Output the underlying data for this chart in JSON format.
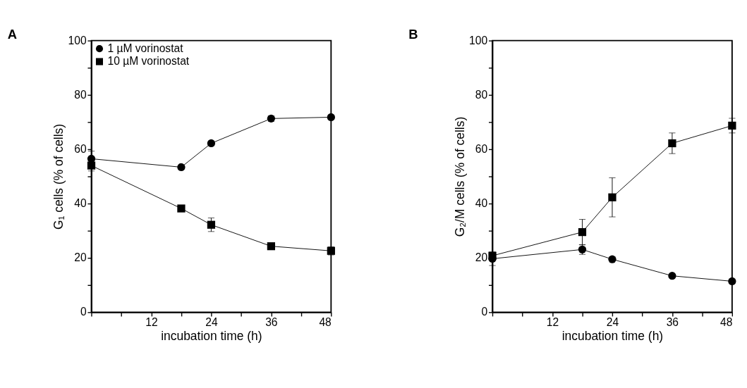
{
  "chart_data": [
    {
      "type": "line",
      "title": "A",
      "xlabel": "incubation time (h)",
      "ylabel": "G₁ cells (% of cells)",
      "xlim": [
        0,
        48
      ],
      "ylim": [
        0,
        100
      ],
      "xticks": [
        {
          "value": 0,
          "label": null
        },
        {
          "value": 6,
          "label": null
        },
        12,
        {
          "value": 18,
          "label": null
        },
        24,
        {
          "value": 30,
          "label": null
        },
        36,
        {
          "value": 42,
          "label": null
        },
        48
      ],
      "yticks": [
        0,
        {
          "value": 10,
          "label": null
        },
        20,
        {
          "value": 30,
          "label": null
        },
        40,
        {
          "value": 50,
          "label": null
        },
        60,
        {
          "value": 70,
          "label": null
        },
        80,
        {
          "value": 90,
          "label": null
        },
        100
      ],
      "x": [
        0,
        18,
        24,
        36,
        48
      ],
      "grid": false,
      "legend": "top left",
      "line_style": "solid",
      "series": [
        {
          "name": "1 µM vorinostat",
          "color": "#000000",
          "marker": "circle",
          "values": [
            56.5,
            53.4,
            62.2,
            71.3,
            71.8
          ],
          "errors": [
            2.8,
            null,
            null,
            1.0,
            null
          ]
        },
        {
          "name": "10 µM vorinostat",
          "color": "#000000",
          "marker": "square",
          "values": [
            54.0,
            38.2,
            32.2,
            24.3,
            22.6
          ],
          "errors": [
            2.0,
            null,
            2.5,
            null,
            1.5
          ]
        }
      ]
    },
    {
      "type": "line",
      "title": "B",
      "xlabel": "incubation time (h)",
      "ylabel": "G₂/M cells (% of cells)",
      "xlim": [
        0,
        48
      ],
      "ylim": [
        0,
        100
      ],
      "xticks": [
        {
          "value": 0,
          "label": null
        },
        {
          "value": 6,
          "label": null
        },
        12,
        {
          "value": 18,
          "label": null
        },
        24,
        {
          "value": 30,
          "label": null
        },
        36,
        {
          "value": 42,
          "label": null
        },
        48
      ],
      "yticks": [
        0,
        {
          "value": 10,
          "label": null
        },
        20,
        {
          "value": 30,
          "label": null
        },
        40,
        {
          "value": 50,
          "label": null
        },
        60,
        {
          "value": 70,
          "label": null
        },
        80,
        {
          "value": 90,
          "label": null
        },
        100
      ],
      "x": [
        0,
        18,
        24,
        36,
        48
      ],
      "grid": false,
      "legend": "top left",
      "line_style": "solid",
      "series": [
        {
          "name": "1 µM vorinostat",
          "color": "#000000",
          "marker": "circle",
          "values": [
            19.7,
            23.1,
            19.5,
            13.4,
            11.4
          ],
          "errors": [
            2.5,
            1.8,
            null,
            null,
            null
          ]
        },
        {
          "name": "10 µM vorinostat",
          "color": "#000000",
          "marker": "square",
          "values": [
            20.8,
            29.5,
            42.3,
            62.2,
            68.7
          ],
          "errors": [
            null,
            4.7,
            7.2,
            3.8,
            2.7
          ]
        }
      ]
    }
  ]
}
